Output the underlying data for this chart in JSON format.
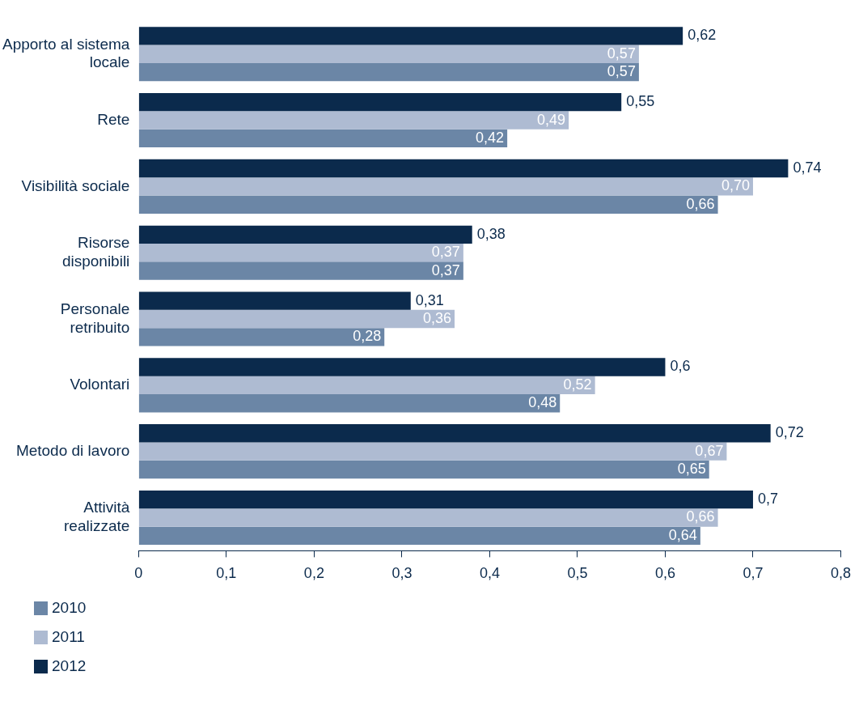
{
  "chart_data": {
    "type": "bar",
    "orientation": "horizontal",
    "categories": [
      "Apporto al sistema locale",
      "Rete",
      "Visibilità sociale",
      "Risorse disponibili",
      "Personale retribuito",
      "Volontari",
      "Metodo di lavoro",
      "Attività realizzate"
    ],
    "series": [
      {
        "name": "2010",
        "color": "#6b86a6",
        "values": [
          0.57,
          0.42,
          0.66,
          0.37,
          0.28,
          0.48,
          0.65,
          0.64
        ],
        "value_labels": [
          "0,57",
          "0,42",
          "0,66",
          "0,37",
          "0,28",
          "0,48",
          "0,65",
          "0,64"
        ]
      },
      {
        "name": "2011",
        "color": "#aebbd2",
        "values": [
          0.57,
          0.49,
          0.7,
          0.37,
          0.36,
          0.52,
          0.67,
          0.66
        ],
        "value_labels": [
          "0,57",
          "0,49",
          "0,70",
          "0,37",
          "0,36",
          "0,52",
          "0,67",
          "0,66"
        ]
      },
      {
        "name": "2012",
        "color": "#0b2a4c",
        "values": [
          0.62,
          0.55,
          0.74,
          0.38,
          0.31,
          0.6,
          0.72,
          0.7
        ],
        "value_labels": [
          "0,62",
          "0,55",
          "0,74",
          "0,38",
          "0,31",
          "0,6",
          "0,72",
          "0,7"
        ]
      }
    ],
    "xlim": [
      0,
      0.8
    ],
    "xticks": [
      {
        "value": 0,
        "label": "0"
      },
      {
        "value": 0.1,
        "label": "0,1"
      },
      {
        "value": 0.2,
        "label": "0,2"
      },
      {
        "value": 0.3,
        "label": "0,3"
      },
      {
        "value": 0.4,
        "label": "0,4"
      },
      {
        "value": 0.5,
        "label": "0,5"
      },
      {
        "value": 0.6,
        "label": "0,6"
      },
      {
        "value": 0.7,
        "label": "0,7"
      },
      {
        "value": 0.8,
        "label": "0,8"
      }
    ],
    "grid": false,
    "legend": "bottom left"
  }
}
